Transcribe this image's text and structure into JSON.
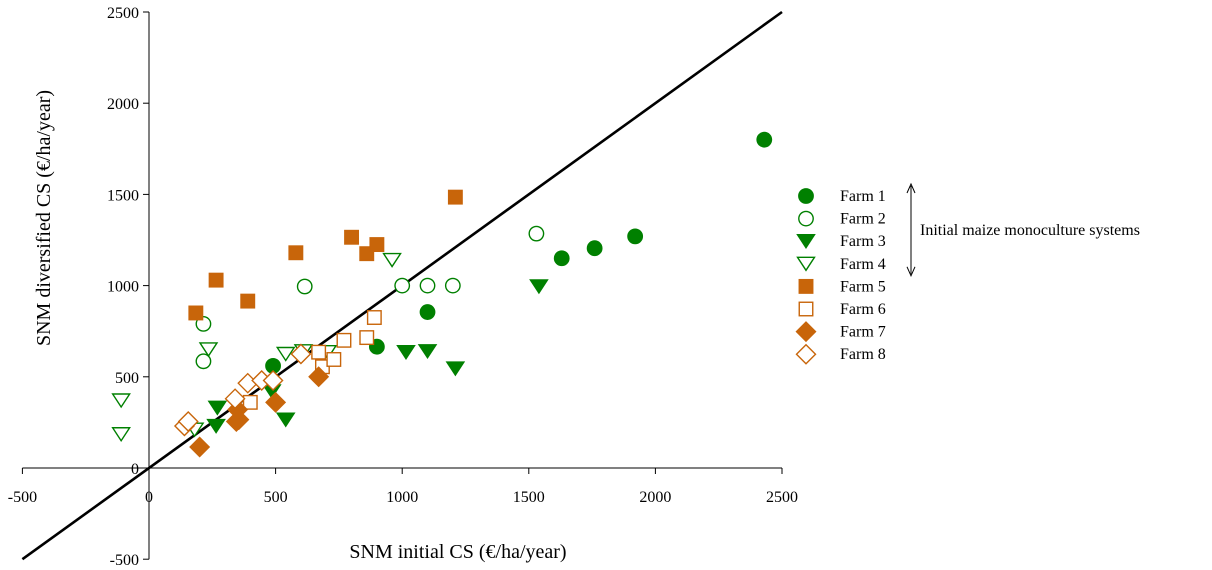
{
  "chart_data": {
    "type": "scatter",
    "xlabel": "SNM initial CS (€/ha/year)",
    "ylabel": "SNM diversified CS (€/ha/year)",
    "xlim": [
      -500,
      2500
    ],
    "ylim": [
      -500,
      2500
    ],
    "x_ticks": [
      -500,
      0,
      500,
      1000,
      1500,
      2000,
      2500
    ],
    "y_ticks": [
      -500,
      0,
      500,
      1000,
      1500,
      2000,
      2500
    ],
    "grid": false,
    "legend_position": "right",
    "reference_line": {
      "type": "y=x"
    },
    "colors": {
      "green": "#008000",
      "orange": "#c8650a"
    },
    "annotation": "Initial maize monoculture systems",
    "annotation_span": [
      "Farm 1",
      "Farm 4"
    ],
    "series": [
      {
        "name": "Farm 1",
        "marker": "circle",
        "filled": true,
        "color": "#008000",
        "points": [
          [
            490,
            560
          ],
          [
            900,
            665
          ],
          [
            1100,
            855
          ],
          [
            1630,
            1150
          ],
          [
            1760,
            1205
          ],
          [
            1920,
            1270
          ],
          [
            2430,
            1800
          ]
        ]
      },
      {
        "name": "Farm 2",
        "marker": "circle",
        "filled": false,
        "color": "#008000",
        "points": [
          [
            215,
            790
          ],
          [
            215,
            585
          ],
          [
            615,
            995
          ],
          [
            1000,
            1000
          ],
          [
            1100,
            1000
          ],
          [
            1200,
            1000
          ],
          [
            1530,
            1285
          ]
        ]
      },
      {
        "name": "Farm 3",
        "marker": "triangle-down",
        "filled": true,
        "color": "#008000",
        "points": [
          [
            270,
            330
          ],
          [
            265,
            230
          ],
          [
            485,
            420
          ],
          [
            540,
            265
          ],
          [
            1015,
            635
          ],
          [
            1100,
            640
          ],
          [
            1210,
            545
          ],
          [
            1540,
            995
          ]
        ]
      },
      {
        "name": "Farm 4",
        "marker": "triangle-down",
        "filled": false,
        "color": "#008000",
        "points": [
          [
            -110,
            370
          ],
          [
            -110,
            185
          ],
          [
            180,
            210
          ],
          [
            235,
            650
          ],
          [
            540,
            625
          ],
          [
            610,
            640
          ],
          [
            705,
            635
          ],
          [
            960,
            1140
          ]
        ]
      },
      {
        "name": "Farm 5",
        "marker": "square",
        "filled": true,
        "color": "#c8650a",
        "points": [
          [
            185,
            850
          ],
          [
            265,
            1030
          ],
          [
            390,
            915
          ],
          [
            580,
            1180
          ],
          [
            800,
            1265
          ],
          [
            860,
            1175
          ],
          [
            900,
            1225
          ],
          [
            1210,
            1485
          ]
        ]
      },
      {
        "name": "Farm 6",
        "marker": "square",
        "filled": false,
        "color": "#c8650a",
        "points": [
          [
            400,
            360
          ],
          [
            670,
            635
          ],
          [
            685,
            555
          ],
          [
            730,
            595
          ],
          [
            770,
            700
          ],
          [
            860,
            715
          ],
          [
            890,
            825
          ]
        ]
      },
      {
        "name": "Farm 7",
        "marker": "diamond",
        "filled": true,
        "color": "#c8650a",
        "points": [
          [
            200,
            115
          ],
          [
            345,
            255
          ],
          [
            355,
            265
          ],
          [
            350,
            320
          ],
          [
            500,
            360
          ],
          [
            670,
            500
          ]
        ]
      },
      {
        "name": "Farm 8",
        "marker": "diamond",
        "filled": false,
        "color": "#c8650a",
        "points": [
          [
            140,
            230
          ],
          [
            155,
            255
          ],
          [
            340,
            380
          ],
          [
            390,
            465
          ],
          [
            445,
            480
          ],
          [
            490,
            480
          ],
          [
            600,
            625
          ]
        ]
      }
    ]
  }
}
